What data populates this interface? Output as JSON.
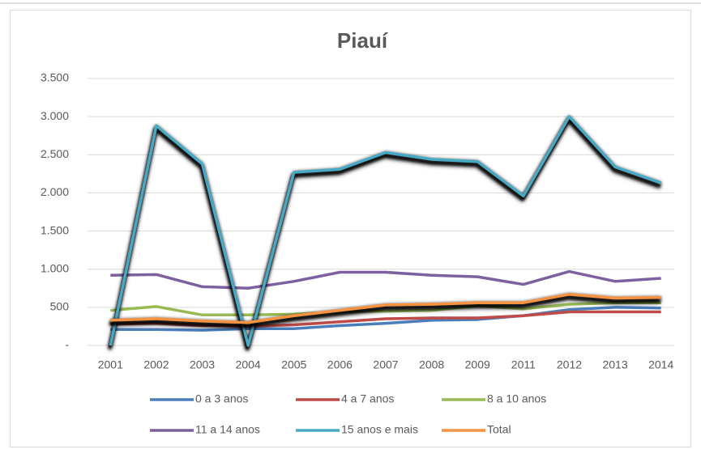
{
  "chart_data": {
    "type": "line",
    "title": "Piauí",
    "categories": [
      "2001",
      "2002",
      "2003",
      "2004",
      "2005",
      "2006",
      "2007",
      "2008",
      "2009",
      "2011",
      "2012",
      "2013",
      "2014"
    ],
    "series": [
      {
        "name": "0 a 3 anos",
        "color": "#4a7ebb",
        "values": [
          210,
          210,
          200,
          220,
          220,
          260,
          290,
          330,
          340,
          390,
          470,
          500,
          490
        ]
      },
      {
        "name": "4 a 7 anos",
        "color": "#be4b48",
        "values": [
          280,
          290,
          260,
          250,
          270,
          310,
          350,
          360,
          360,
          390,
          440,
          440,
          440
        ]
      },
      {
        "name": "8 a 10 anos",
        "color": "#98b954",
        "values": [
          460,
          510,
          400,
          400,
          410,
          440,
          450,
          460,
          520,
          480,
          540,
          560,
          560
        ]
      },
      {
        "name": "11 a 14 anos",
        "color": "#7d60a0",
        "values": [
          920,
          930,
          770,
          750,
          840,
          960,
          960,
          920,
          900,
          800,
          970,
          840,
          880
        ]
      },
      {
        "name": "15 anos e mais",
        "color": "#46aac5",
        "shadow": "#000000",
        "values": [
          0,
          2880,
          2380,
          0,
          2270,
          2310,
          2530,
          2440,
          2410,
          1960,
          3000,
          2340,
          2130
        ]
      },
      {
        "name": "Total",
        "color": "#f69240",
        "shadow": "#000000",
        "values": [
          330,
          350,
          320,
          300,
          390,
          460,
          530,
          540,
          560,
          560,
          670,
          620,
          630
        ]
      }
    ],
    "ylim": [
      0,
      3500
    ],
    "yticks": [
      {
        "value": 0,
        "label": "-"
      },
      500,
      {
        "value": 1000,
        "label": "1.000"
      },
      {
        "value": 1500,
        "label": "1.500"
      },
      {
        "value": 2000,
        "label": "2.000"
      },
      {
        "value": 2500,
        "label": "2.500"
      },
      {
        "value": 3000,
        "label": "3.000"
      },
      {
        "value": 3500,
        "label": "3.500"
      }
    ],
    "grid": true
  }
}
